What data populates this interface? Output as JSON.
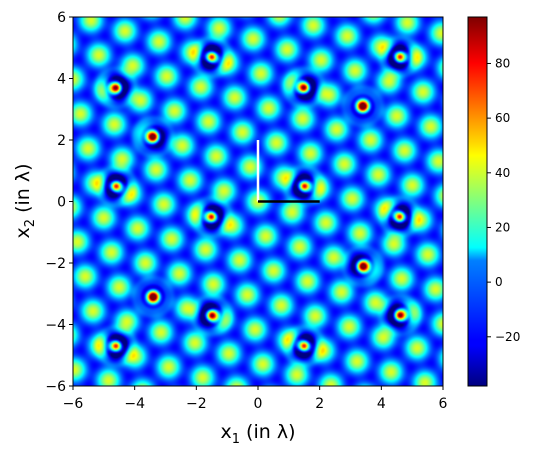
{
  "chart_data": {
    "type": "heatmap",
    "title": "",
    "xlabel": {
      "main": "x",
      "sub": "1",
      "suffix": " (in λ)"
    },
    "ylabel": {
      "main": "x",
      "sub": "2",
      "suffix": " (in λ)"
    },
    "xlim": [
      -6,
      6
    ],
    "ylim": [
      -6,
      6
    ],
    "xticks": [
      -6,
      -4,
      -2,
      0,
      2,
      4,
      6
    ],
    "yticks": [
      -6,
      -4,
      -2,
      0,
      2,
      4,
      6
    ],
    "xtick_labels": [
      "−6",
      "−4",
      "−2",
      "0",
      "2",
      "4",
      "6"
    ],
    "ytick_labels": [
      "−6",
      "−4",
      "−2",
      "0",
      "2",
      "4",
      "6"
    ],
    "colormap": "jet",
    "colorbar": {
      "range": [
        -38,
        97
      ],
      "ticks": [
        -20,
        0,
        20,
        40,
        60,
        80
      ],
      "tick_labels": [
        "−20",
        "0",
        "20",
        "40",
        "60",
        "80"
      ]
    },
    "lattice_vectors": {
      "white": {
        "from": [
          0,
          0
        ],
        "to": [
          0,
          2
        ],
        "color": "#ffffff"
      },
      "black": {
        "from": [
          0,
          0
        ],
        "to": [
          2,
          0
        ],
        "color": "#000000"
      }
    },
    "intensity_peaks": [
      [
        -1.5,
        4.7
      ],
      [
        1.5,
        3.7
      ],
      [
        3.4,
        3.1
      ],
      [
        -3.4,
        2.1
      ],
      [
        1.5,
        0.5
      ],
      [
        -4.6,
        0.5
      ],
      [
        4.6,
        -0.5
      ],
      [
        -1.5,
        -0.5
      ],
      [
        3.4,
        -2.1
      ],
      [
        -3.4,
        -3.1
      ],
      [
        -1.5,
        -3.7
      ],
      [
        1.5,
        -4.7
      ],
      [
        -4.6,
        -4.7
      ],
      [
        4.6,
        4.7
      ],
      [
        -4.6,
        3.7
      ],
      [
        4.6,
        -3.7
      ]
    ],
    "grid": false
  }
}
